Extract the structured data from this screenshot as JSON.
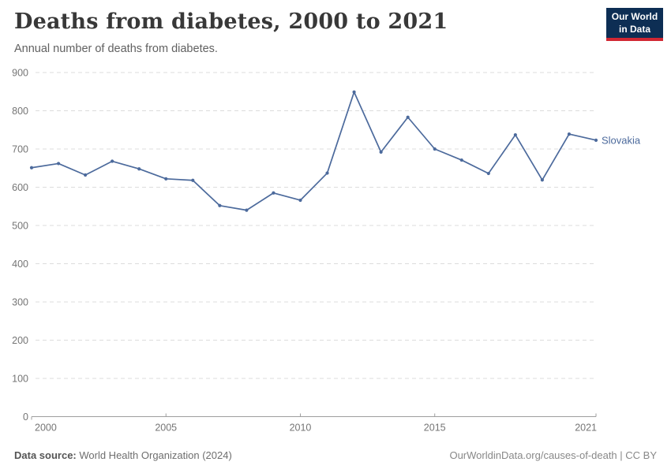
{
  "header": {
    "title": "Deaths from diabetes, 2000 to 2021",
    "subtitle": "Annual number of deaths from diabetes.",
    "logo": {
      "line1": "Our World",
      "line2": "in Data",
      "bg_color": "#0d2e54",
      "bar_color": "#d12733"
    }
  },
  "chart_data": {
    "type": "line",
    "title": "Deaths from diabetes, 2000 to 2021",
    "xlabel": "",
    "ylabel": "",
    "x": [
      2000,
      2001,
      2002,
      2003,
      2004,
      2005,
      2006,
      2007,
      2008,
      2009,
      2010,
      2011,
      2012,
      2013,
      2014,
      2015,
      2016,
      2017,
      2018,
      2019,
      2020,
      2021
    ],
    "series": [
      {
        "name": "Slovakia",
        "color": "#4c6a9c",
        "values": [
          651,
          662,
          632,
          668,
          648,
          622,
          618,
          552,
          540,
          585,
          566,
          637,
          849,
          692,
          783,
          700,
          671,
          636,
          737,
          619,
          739,
          723
        ]
      }
    ],
    "ylim": [
      0,
      900
    ],
    "yticks": [
      0,
      100,
      200,
      300,
      400,
      500,
      600,
      700,
      800,
      900
    ],
    "xtick_labels": [
      2000,
      2005,
      2010,
      2015,
      2021
    ],
    "grid": "horizontal-dashed",
    "legend_position": "end-of-line-label",
    "axis_color": "#9e9e9e",
    "grid_color": "#dcdcdc",
    "tick_label_color": "#757575"
  },
  "footer": {
    "source_label": "Data source:",
    "source_value": " World Health Organization (2024)",
    "credit": "OurWorldinData.org/causes-of-death | CC BY"
  }
}
